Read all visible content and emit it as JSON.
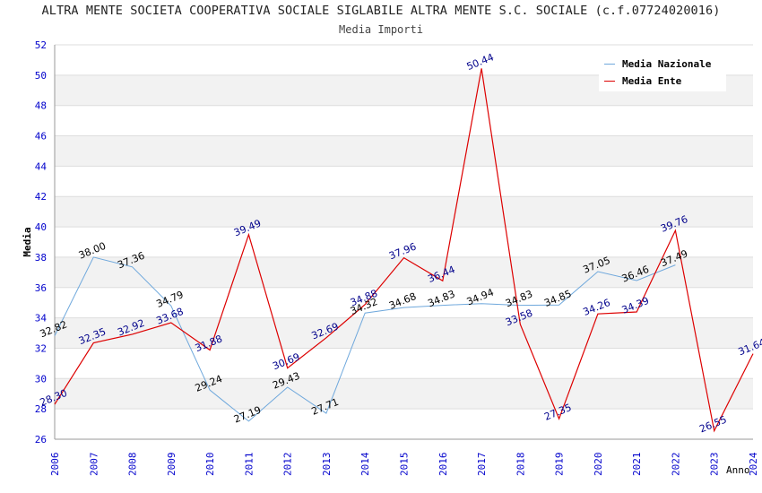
{
  "header": {
    "title": "ALTRA MENTE SOCIETA COOPERATIVA SOCIALE SIGLABILE ALTRA MENTE S.C. SOCIALE (c.f.07724020016)",
    "subtitle": "Media Importi"
  },
  "chart_data": {
    "type": "line",
    "title": "ALTRA MENTE SOCIETA COOPERATIVA SOCIALE SIGLABILE ALTRA MENTE S.C. SOCIALE (c.f.07724020016)",
    "subtitle": "Media Importi",
    "xlabel": "Anno",
    "ylabel": "Media",
    "ylim": [
      26,
      52
    ],
    "yticks": [
      "26",
      "28",
      "30",
      "32",
      "34",
      "36",
      "38",
      "40",
      "42",
      "44",
      "46",
      "48",
      "50",
      "52"
    ],
    "categories": [
      "2006",
      "2007",
      "2008",
      "2009",
      "2010",
      "2011",
      "2012",
      "2013",
      "2014",
      "2015",
      "2016",
      "2017",
      "2018",
      "2019",
      "2020",
      "2021",
      "2022",
      "2023",
      "2024"
    ],
    "series": [
      {
        "name": "Media Nazionale",
        "color": "#6fa8dc",
        "label_color": "#000000",
        "values": [
          32.82,
          38.0,
          37.36,
          34.79,
          29.24,
          27.19,
          29.43,
          27.71,
          34.32,
          34.68,
          34.83,
          34.94,
          34.83,
          34.85,
          37.05,
          36.46,
          37.49,
          null,
          null
        ],
        "labels": [
          "32.82",
          "38.00",
          "37.36",
          "34.79",
          "29.24",
          "27.19",
          "29.43",
          "27.71",
          "34.32",
          "34.68",
          "34.83",
          "34.94",
          "34.83",
          "34.85",
          "37.05",
          "36.46",
          "37.49",
          null,
          null
        ]
      },
      {
        "name": "Media Ente",
        "color": "#dd0000",
        "label_color": "#00008b",
        "values": [
          28.3,
          32.35,
          32.92,
          33.68,
          31.88,
          39.49,
          30.69,
          32.69,
          34.88,
          37.96,
          36.44,
          50.44,
          33.58,
          27.35,
          34.26,
          34.39,
          39.76,
          26.55,
          31.64
        ],
        "labels": [
          "28.30",
          "32.35",
          "32.92",
          "33.68",
          "31.88",
          "39.49",
          "30.69",
          "32.69",
          "34.88",
          "37.96",
          "36.44",
          "50.44",
          "33.58",
          "27.35",
          "34.26",
          "34.39",
          "39.76",
          "26.55",
          "31.64"
        ]
      }
    ],
    "grid": true,
    "legend": "top-right"
  },
  "style": {
    "axis_label_color": "#0000cc",
    "band_color": "#f2f2f2",
    "grid_color": "#dddddd"
  }
}
